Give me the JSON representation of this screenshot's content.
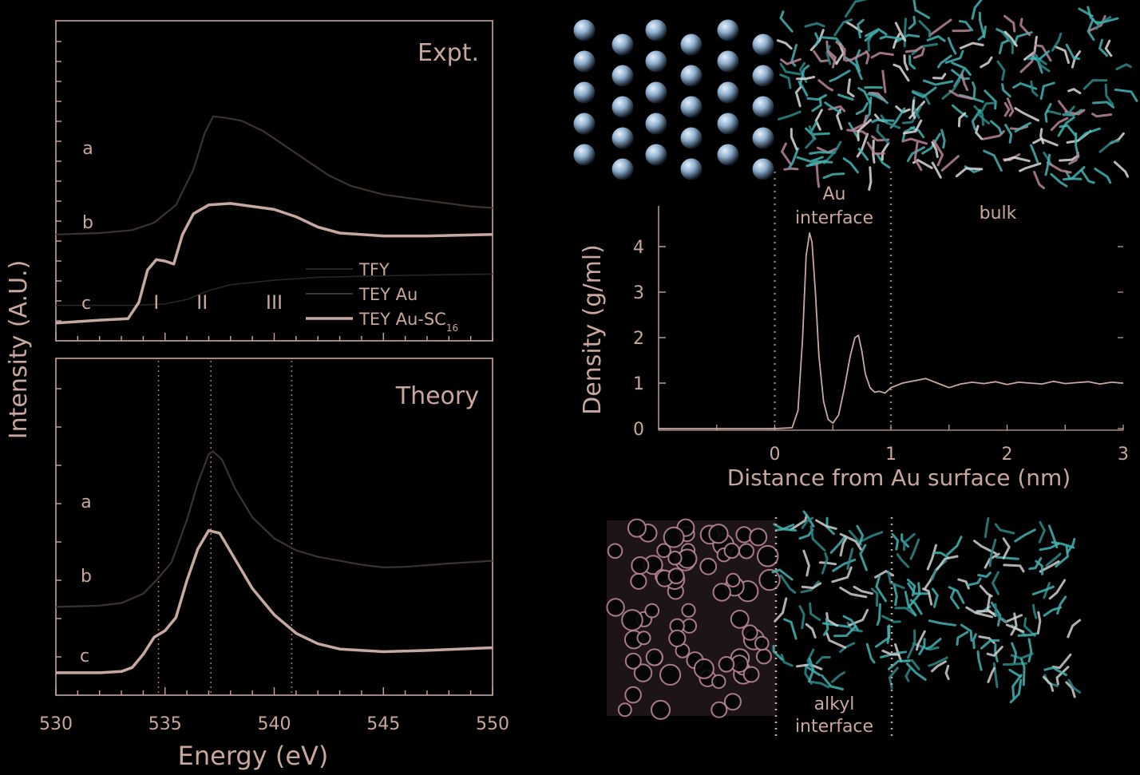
{
  "colors": {
    "axis": "#c9a69e",
    "text": "#c9a69e",
    "tfy": "#2a2523",
    "tey_au": "#3c3230",
    "tey_ausc": "#c8a9a2",
    "vline": "#a0736d",
    "density": "#c8a9a2",
    "gold_atom": "#8fb0cf",
    "alkyl": "#43b3b3",
    "alkyl_pink": "#b98596"
  },
  "chart_data": [
    {
      "type": "line",
      "id": "expt",
      "panel_label": "Expt.",
      "xlim": [
        530,
        550
      ],
      "curve_labels": [
        "a",
        "b",
        "c"
      ],
      "region_labels": [
        "I",
        "II",
        "III"
      ],
      "region_x": [
        534.6,
        536.7,
        540
      ],
      "legend": [
        "TFY",
        "TEY Au",
        "TEY Au-SC"
      ],
      "legend_subscript": "16",
      "series": [
        {
          "key": "tfy",
          "x": [
            530,
            533.5,
            535,
            536,
            537,
            538,
            540,
            542,
            545,
            548,
            550
          ],
          "y": [
            1.2,
            1.2,
            1.25,
            1.4,
            1.7,
            1.9,
            2.05,
            2.15,
            2.2,
            2.24,
            2.26
          ]
        },
        {
          "key": "tey_au",
          "x": [
            530,
            532,
            533.5,
            534.5,
            535.5,
            536.3,
            536.8,
            537.2,
            537.8,
            538.5,
            539.5,
            540.5,
            541.5,
            542.5,
            543.5,
            545,
            547,
            549,
            550
          ],
          "y": [
            3.6,
            3.65,
            3.75,
            4.0,
            4.6,
            5.8,
            7.0,
            7.6,
            7.55,
            7.45,
            7.1,
            6.6,
            6.1,
            5.6,
            5.25,
            4.95,
            4.75,
            4.55,
            4.5
          ]
        },
        {
          "key": "tey_ausc",
          "x": [
            530,
            532,
            533.3,
            533.8,
            534.2,
            534.6,
            535,
            535.4,
            535.8,
            536.3,
            537,
            538,
            539,
            540,
            541,
            542,
            543,
            545,
            547,
            550
          ],
          "y": [
            0.6,
            0.7,
            0.75,
            1.3,
            2.4,
            2.75,
            2.7,
            2.6,
            3.6,
            4.3,
            4.6,
            4.65,
            4.55,
            4.45,
            4.2,
            3.85,
            3.65,
            3.55,
            3.55,
            3.6
          ]
        }
      ]
    },
    {
      "type": "line",
      "id": "theory",
      "panel_label": "Theory",
      "xlabel": "Energy (eV)",
      "xlim": [
        530,
        550
      ],
      "x_ticks": [
        530,
        535,
        540,
        545,
        550
      ],
      "curve_labels": [
        "a",
        "b",
        "c"
      ],
      "vlines": [
        534.7,
        537.1,
        540.8
      ],
      "series": [
        {
          "key": "tey_au",
          "x": [
            530,
            532,
            533,
            534,
            534.7,
            535.3,
            536,
            536.5,
            537,
            537.2,
            537.6,
            538.2,
            539,
            540,
            541,
            542,
            543,
            544,
            545,
            546,
            548,
            550
          ],
          "y": [
            1.2,
            1.25,
            1.35,
            1.7,
            2.3,
            2.9,
            4.5,
            5.9,
            7.0,
            7.1,
            6.8,
            5.7,
            4.6,
            3.8,
            3.35,
            3.1,
            2.95,
            2.8,
            2.7,
            2.72,
            2.85,
            2.95
          ]
        },
        {
          "key": "tey_ausc",
          "x": [
            530,
            532,
            533,
            533.5,
            534,
            534.5,
            535,
            535.5,
            536,
            536.5,
            537,
            537.5,
            538,
            539,
            540,
            541,
            542,
            543,
            545,
            547,
            550
          ],
          "y": [
            -1.3,
            -1.3,
            -1.25,
            -1.1,
            -0.6,
            0.05,
            0.3,
            0.8,
            2.2,
            3.4,
            4.1,
            4.0,
            3.3,
            1.9,
            0.9,
            0.2,
            -0.2,
            -0.4,
            -0.5,
            -0.45,
            -0.35
          ]
        }
      ]
    },
    {
      "type": "line",
      "id": "density",
      "ylabel": "Density (g/ml)",
      "xlabel": "Distance from Au surface (nm)",
      "xlim": [
        -1,
        3
      ],
      "ylim": [
        0,
        4.5
      ],
      "x_ticks": [
        0,
        1,
        2,
        3
      ],
      "y_ticks": [
        0,
        1,
        2,
        3,
        4
      ],
      "vlines": [
        0,
        1
      ],
      "region_labels": [
        {
          "line1": "Au",
          "line2": "interface"
        },
        {
          "line1": "bulk",
          "line2": ""
        }
      ],
      "series": [
        {
          "key": "density",
          "x": [
            -1,
            0,
            0.15,
            0.2,
            0.24,
            0.27,
            0.3,
            0.32,
            0.35,
            0.38,
            0.42,
            0.46,
            0.5,
            0.55,
            0.6,
            0.65,
            0.69,
            0.72,
            0.75,
            0.78,
            0.82,
            0.86,
            0.9,
            0.95,
            1.0,
            1.1,
            1.2,
            1.3,
            1.4,
            1.5,
            1.6,
            1.7,
            1.8,
            1.9,
            2.0,
            2.1,
            2.2,
            2.3,
            2.4,
            2.5,
            2.6,
            2.7,
            2.8,
            2.9,
            3.0
          ],
          "y": [
            0,
            0,
            0.02,
            0.4,
            2.0,
            3.8,
            4.3,
            4.1,
            3.0,
            1.6,
            0.6,
            0.2,
            0.12,
            0.3,
            0.9,
            1.6,
            2.0,
            2.05,
            1.7,
            1.2,
            0.9,
            0.8,
            0.82,
            0.78,
            0.9,
            1.0,
            1.05,
            1.1,
            1.0,
            0.9,
            0.98,
            1.02,
            0.99,
            1.03,
            0.97,
            1.02,
            1.0,
            0.98,
            1.04,
            0.99,
            1.01,
            1.03,
            0.98,
            1.02,
            1.0
          ]
        }
      ]
    }
  ],
  "shared_ylabel": "Intensity (A.U.)",
  "bottom_annotation": {
    "line1": "alkyl",
    "line2": "interface"
  }
}
